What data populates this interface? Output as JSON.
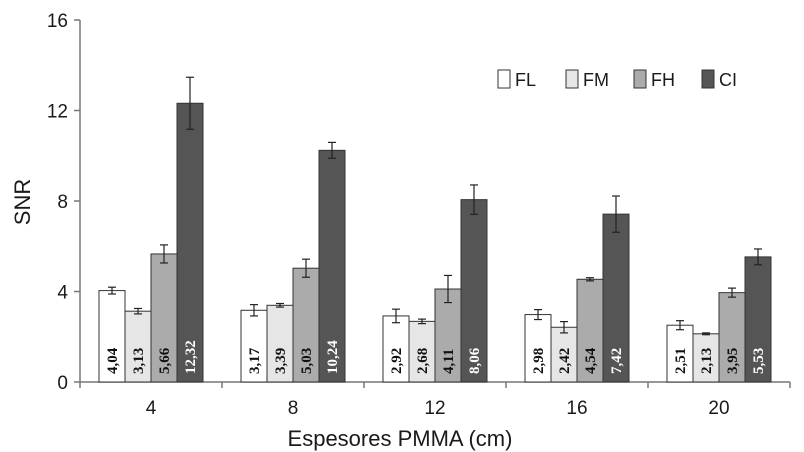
{
  "chart_data": {
    "type": "bar",
    "title": "",
    "xlabel": "Espesores PMMA (cm)",
    "ylabel": "SNR",
    "ylim": [
      0,
      16
    ],
    "yticks": [
      "0",
      "4",
      "8",
      "12",
      "16"
    ],
    "categories": [
      "4",
      "8",
      "12",
      "16",
      "20"
    ],
    "legend_position": "top-right",
    "grid": false,
    "series": [
      {
        "name": "FL",
        "color": "#ffffff",
        "label_color": "#111111",
        "values": [
          4.04,
          3.17,
          2.92,
          2.98,
          2.51
        ],
        "labels": [
          "4,04",
          "3,17",
          "2,92",
          "2,98",
          "2,51"
        ],
        "errors": [
          0.15,
          0.25,
          0.3,
          0.22,
          0.2
        ]
      },
      {
        "name": "FM",
        "color": "#e6e6e6",
        "label_color": "#111111",
        "values": [
          3.13,
          3.39,
          2.68,
          2.42,
          2.13
        ],
        "labels": [
          "3,13",
          "3,39",
          "2,68",
          "2,42",
          "2,13"
        ],
        "errors": [
          0.12,
          0.08,
          0.1,
          0.25,
          0.04
        ]
      },
      {
        "name": "FH",
        "color": "#ababab",
        "label_color": "#111111",
        "values": [
          5.66,
          5.03,
          4.11,
          4.54,
          3.95
        ],
        "labels": [
          "5,66",
          "5,03",
          "4,11",
          "4,54",
          "3,95"
        ],
        "errors": [
          0.4,
          0.4,
          0.6,
          0.07,
          0.2
        ]
      },
      {
        "name": "CI",
        "color": "#555555",
        "label_color": "#ffffff",
        "values": [
          12.32,
          10.24,
          8.06,
          7.42,
          5.53
        ],
        "labels": [
          "12,32",
          "10,24",
          "8,06",
          "7,42",
          "5,53"
        ],
        "errors": [
          1.15,
          0.35,
          0.65,
          0.8,
          0.35
        ]
      }
    ]
  }
}
